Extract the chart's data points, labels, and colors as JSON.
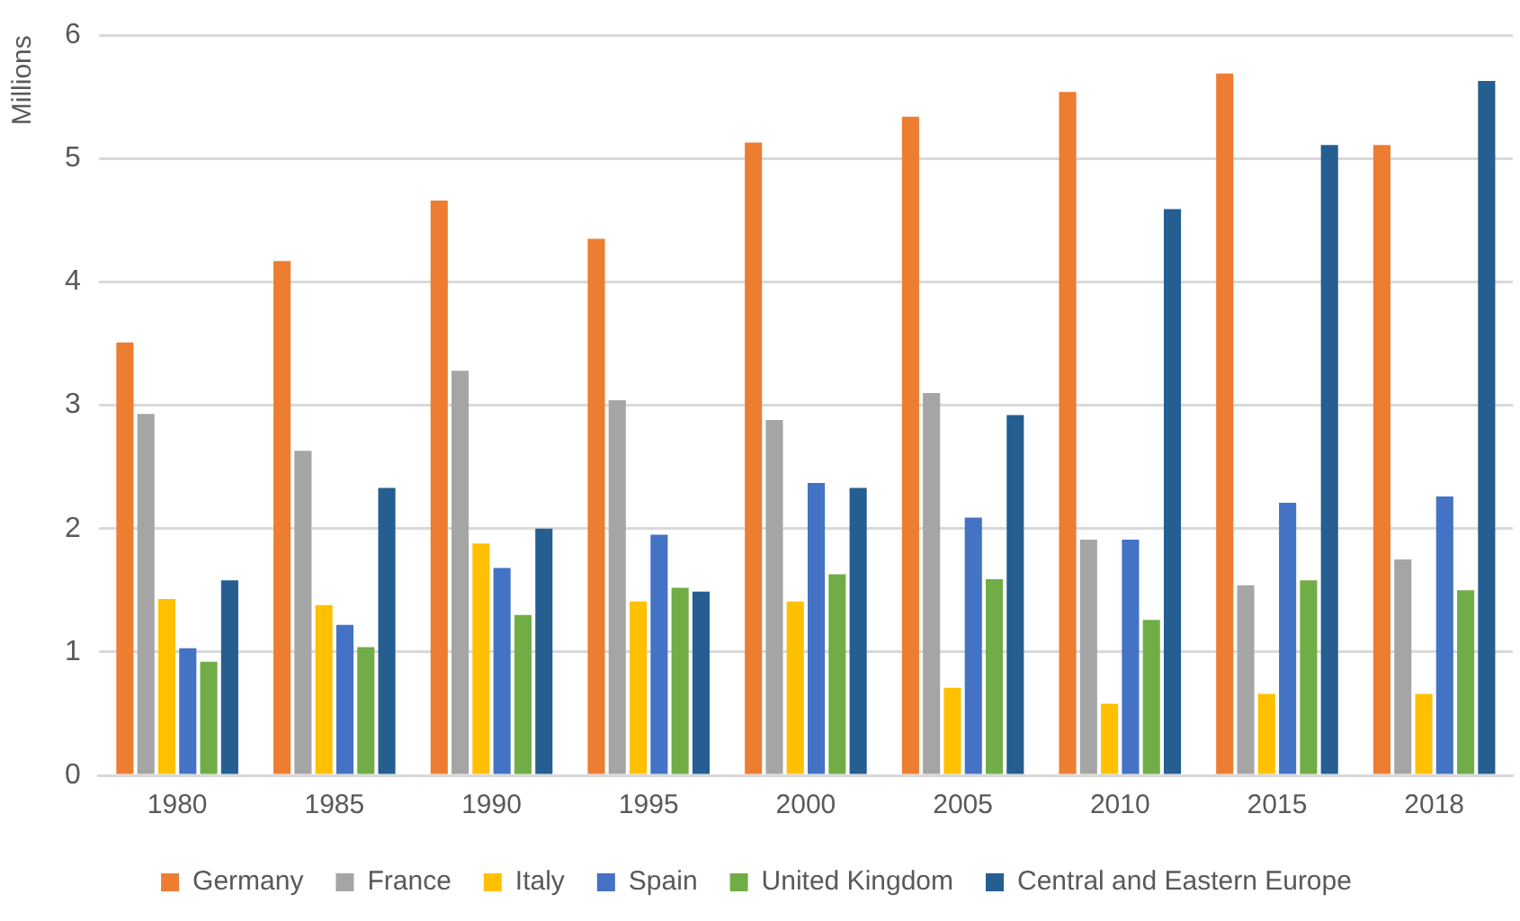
{
  "chart_data": {
    "type": "bar",
    "ylabel": "Millions",
    "categories": [
      "1980",
      "1985",
      "1990",
      "1995",
      "2000",
      "2005",
      "2010",
      "2015",
      "2018"
    ],
    "series": [
      {
        "name": "Germany",
        "color": "#ed7d31",
        "values": [
          3.51,
          4.17,
          4.66,
          4.35,
          5.13,
          5.34,
          5.54,
          5.69,
          5.11
        ]
      },
      {
        "name": "France",
        "color": "#a5a5a5",
        "values": [
          2.93,
          2.63,
          3.28,
          3.04,
          2.88,
          3.1,
          1.91,
          1.54,
          1.75
        ]
      },
      {
        "name": "Italy",
        "color": "#ffc000",
        "values": [
          1.43,
          1.38,
          1.88,
          1.41,
          1.41,
          0.71,
          0.58,
          0.66,
          0.66
        ]
      },
      {
        "name": "Spain",
        "color": "#4472c4",
        "values": [
          1.03,
          1.22,
          1.68,
          1.95,
          2.37,
          2.09,
          1.91,
          2.21,
          2.26
        ]
      },
      {
        "name": "United Kingdom",
        "color": "#70ad47",
        "values": [
          0.92,
          1.04,
          1.3,
          1.52,
          1.63,
          1.59,
          1.26,
          1.58,
          1.5
        ]
      },
      {
        "name": "Central and Eastern Europe",
        "color": "#255e91",
        "values": [
          1.58,
          2.33,
          2,
          1.49,
          2.33,
          2.92,
          4.59,
          5.11,
          5.63
        ]
      }
    ],
    "ylim": [
      0,
      6
    ],
    "yticks": [
      0,
      1,
      2,
      3,
      4,
      5,
      6
    ],
    "grid": "y",
    "legend": "bottom"
  }
}
